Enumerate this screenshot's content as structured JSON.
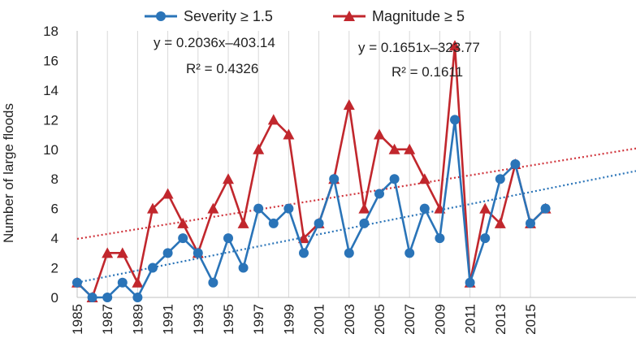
{
  "chart_data": {
    "type": "line",
    "ylabel": "Number of large floods",
    "ylim": [
      0,
      18
    ],
    "y_ticks": [
      "0",
      "2",
      "4",
      "6",
      "8",
      "10",
      "12",
      "14",
      "16",
      "18"
    ],
    "x_tick_labels": [
      "1985",
      "1987",
      "1989",
      "1991",
      "1993",
      "1995",
      "1997",
      "1999",
      "2001",
      "2003",
      "2005",
      "2007",
      "2009",
      "2011",
      "2013",
      "2015"
    ],
    "grid": "vertical",
    "legend_position": "top",
    "x": [
      1985,
      1986,
      1987,
      1988,
      1989,
      1990,
      1991,
      1992,
      1993,
      1994,
      1995,
      1996,
      1997,
      1998,
      1999,
      2000,
      2001,
      2002,
      2003,
      2004,
      2005,
      2006,
      2007,
      2008,
      2009,
      2010,
      2011,
      2012,
      2013,
      2014,
      2015,
      2016
    ],
    "series": [
      {
        "name": "Severity ≥ 1.5",
        "color": "#2a74b8",
        "marker": "circle",
        "values": [
          1,
          0,
          0,
          1,
          0,
          2,
          3,
          4,
          3,
          1,
          4,
          2,
          6,
          5,
          6,
          3,
          5,
          8,
          3,
          5,
          7,
          8,
          3,
          6,
          4,
          12,
          1,
          4,
          8,
          9,
          5,
          6
        ],
        "trendline": {
          "equation": "y = 0.2036x–403.14",
          "r2_label": "R² = 0.4326",
          "slope": 0.2036,
          "intercept": -403.14,
          "color": "#2a74b8"
        }
      },
      {
        "name": "Magnitude ≥ 5",
        "color": "#c1272d",
        "marker": "triangle",
        "values": [
          1,
          0,
          3,
          3,
          1,
          6,
          7,
          5,
          3,
          6,
          8,
          5,
          10,
          12,
          11,
          4,
          5,
          8,
          13,
          6,
          11,
          10,
          10,
          8,
          6,
          17,
          1,
          6,
          5,
          9,
          5,
          6
        ],
        "trendline": {
          "equation": "y = 0.1651x–323.77",
          "r2_label": "R² = 0.1611",
          "slope": 0.1651,
          "intercept": -323.77,
          "color": "#d0343c"
        }
      }
    ]
  }
}
